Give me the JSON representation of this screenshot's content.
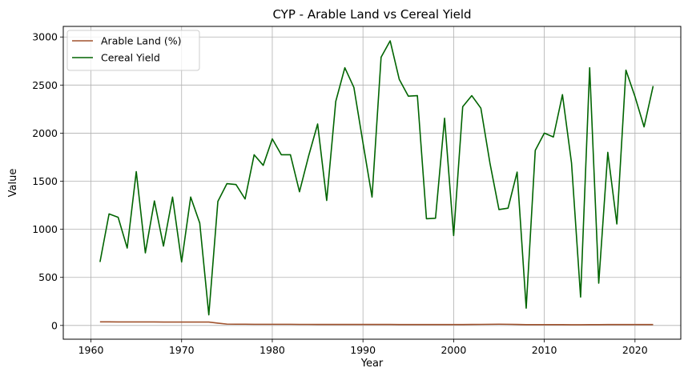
{
  "chart_data": {
    "type": "line",
    "title": "CYP - Arable Land vs Cereal Yield",
    "xlabel": "Year",
    "ylabel": "Value",
    "xlim": [
      1956.95,
      2025.05
    ],
    "ylim": [
      -143,
      3110
    ],
    "xticks": [
      1960,
      1970,
      1980,
      1990,
      2000,
      2010,
      2020
    ],
    "yticks": [
      0,
      500,
      1000,
      1500,
      2000,
      2500,
      3000
    ],
    "grid": true,
    "legend_position": "top-left",
    "x": [
      1961,
      1962,
      1963,
      1964,
      1965,
      1966,
      1967,
      1968,
      1969,
      1970,
      1971,
      1972,
      1973,
      1974,
      1975,
      1976,
      1977,
      1978,
      1979,
      1980,
      1981,
      1982,
      1983,
      1984,
      1985,
      1986,
      1987,
      1988,
      1989,
      1990,
      1991,
      1992,
      1993,
      1994,
      1995,
      1996,
      1997,
      1998,
      1999,
      2000,
      2001,
      2002,
      2003,
      2004,
      2005,
      2006,
      2007,
      2008,
      2009,
      2010,
      2011,
      2012,
      2013,
      2014,
      2015,
      2016,
      2017,
      2018,
      2019,
      2020,
      2021,
      2022
    ],
    "series": [
      {
        "name": "Arable Land (%)",
        "color": "#a0522d",
        "values": [
          37,
          37,
          36,
          36,
          36,
          36,
          36,
          35,
          35,
          35,
          35,
          35,
          35,
          24,
          14,
          13,
          13,
          12,
          12,
          12,
          12,
          12,
          11,
          11,
          10,
          10,
          10,
          10,
          10,
          10,
          10,
          10,
          10,
          9,
          9,
          9,
          9,
          9,
          9,
          9,
          9,
          10,
          11,
          12,
          13,
          12,
          10,
          8,
          8,
          8,
          8,
          8,
          7,
          7,
          8,
          8,
          9,
          9,
          9,
          9,
          9,
          9
        ]
      },
      {
        "name": "Cereal Yield",
        "color": "#006400",
        "values": [
          660,
          1160,
          1125,
          805,
          1600,
          755,
          1295,
          825,
          1335,
          660,
          1335,
          1065,
          110,
          1290,
          1475,
          1465,
          1315,
          1775,
          1665,
          1940,
          1775,
          1775,
          1390,
          1760,
          2095,
          1300,
          2330,
          2680,
          2475,
          1900,
          1335,
          2790,
          2960,
          2560,
          2385,
          2390,
          1110,
          1115,
          2155,
          935,
          2275,
          2390,
          2260,
          1690,
          1205,
          1220,
          1595,
          180,
          1820,
          2000,
          1960,
          2400,
          1690,
          295,
          2680,
          440,
          1800,
          1055,
          2655,
          2380,
          2065,
          2490
        ]
      }
    ]
  }
}
